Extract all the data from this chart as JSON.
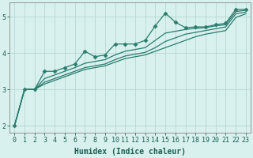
{
  "xlabel": "Humidex (Indice chaleur)",
  "ylabel": "",
  "background_color": "#d8f0ee",
  "grid_color": "#b8d8d4",
  "line_color": "#2a7d6e",
  "x_values": [
    0,
    1,
    2,
    3,
    4,
    5,
    6,
    7,
    8,
    9,
    10,
    11,
    12,
    13,
    14,
    15,
    16,
    17,
    18,
    19,
    20,
    21,
    22,
    23
  ],
  "series_marked": [
    2.0,
    3.0,
    3.0,
    3.5,
    3.5,
    3.6,
    3.7,
    4.05,
    3.9,
    3.95,
    4.25,
    4.25,
    4.25,
    4.35,
    4.75,
    5.1,
    4.85,
    4.7,
    4.72,
    4.72,
    4.78,
    4.82,
    5.2,
    5.2
  ],
  "series_plain": [
    [
      2.0,
      3.0,
      3.0,
      3.15,
      3.25,
      3.35,
      3.45,
      3.55,
      3.6,
      3.65,
      3.75,
      3.85,
      3.9,
      3.95,
      4.05,
      4.15,
      4.25,
      4.35,
      4.45,
      4.52,
      4.57,
      4.62,
      4.98,
      5.08
    ],
    [
      2.0,
      3.0,
      3.0,
      3.2,
      3.3,
      3.4,
      3.5,
      3.6,
      3.65,
      3.7,
      3.82,
      3.92,
      3.97,
      4.02,
      4.15,
      4.32,
      4.42,
      4.52,
      4.57,
      4.62,
      4.67,
      4.72,
      5.08,
      5.13
    ],
    [
      2.0,
      3.0,
      3.0,
      3.3,
      3.4,
      3.5,
      3.6,
      3.72,
      3.77,
      3.82,
      3.95,
      4.05,
      4.1,
      4.15,
      4.35,
      4.55,
      4.6,
      4.65,
      4.68,
      4.7,
      4.75,
      4.78,
      5.14,
      5.18
    ]
  ],
  "ylim": [
    1.8,
    5.4
  ],
  "xlim": [
    -0.5,
    23.5
  ],
  "yticks": [
    2,
    3,
    4,
    5
  ],
  "xticks": [
    0,
    1,
    2,
    3,
    4,
    5,
    6,
    7,
    8,
    9,
    10,
    11,
    12,
    13,
    14,
    15,
    16,
    17,
    18,
    19,
    20,
    21,
    22,
    23
  ],
  "marker": "D",
  "markersize": 2.5,
  "linewidth": 0.9,
  "xlabel_fontsize": 7,
  "tick_fontsize": 6,
  "label_color": "#1a5f52",
  "spine_color": "#888888"
}
